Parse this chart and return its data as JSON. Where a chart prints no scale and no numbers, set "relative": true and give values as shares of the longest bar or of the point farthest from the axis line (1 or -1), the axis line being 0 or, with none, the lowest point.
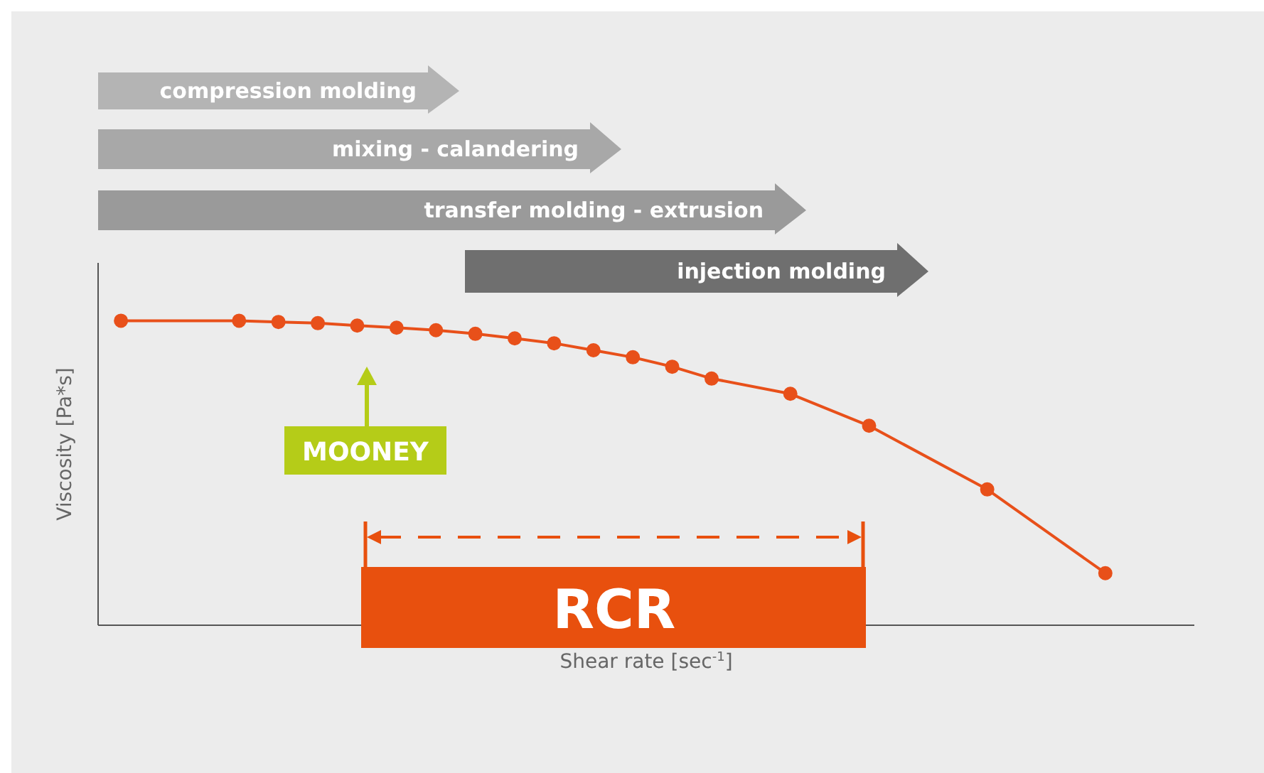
{
  "chart_data": {
    "type": "line",
    "relative": true,
    "xlabel": "Shear rate [sec$^{-1}$]",
    "ylabel": "Viscosity [Pa*s]",
    "color": "#e8501a",
    "marker": "circle",
    "line_style": "solid",
    "categories": [
      null,
      null,
      null,
      null,
      null,
      null,
      null,
      null,
      null,
      null,
      null,
      null,
      null,
      null,
      null,
      null,
      null,
      null,
      null,
      null,
      null,
      null,
      null,
      null,
      null,
      null,
      null,
      null
    ],
    "values": [
      1,
      null,
      null,
      1,
      0.996,
      0.992,
      0.984,
      0.977,
      0.969,
      0.957,
      0.942,
      0.926,
      0.903,
      0.88,
      0.849,
      0.81,
      null,
      0.76,
      null,
      0.655,
      null,
      null,
      0.446,
      null,
      null,
      0.171,
      null,
      null
    ],
    "annotations": [
      "compression molding",
      "mixing - calandering",
      "transfer molding - extrusion",
      "injection molding",
      "MOONEY",
      "RCR"
    ]
  }
}
